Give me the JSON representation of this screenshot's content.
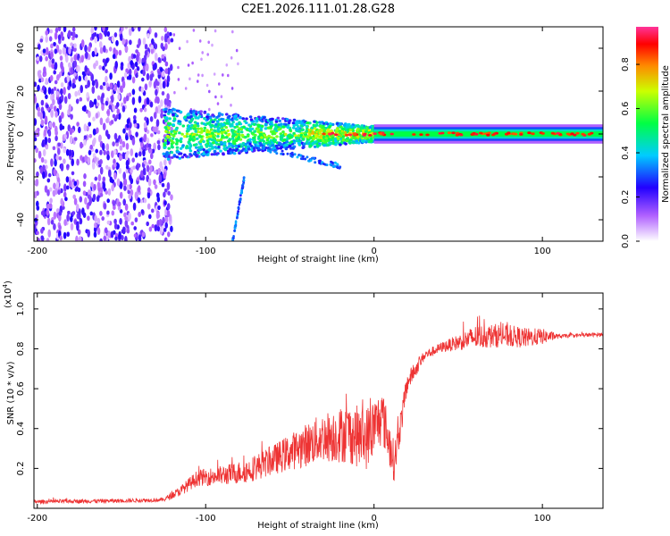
{
  "title": "C2E1.2026.111.01.28.G28",
  "chart_data": [
    {
      "type": "heatmap",
      "xlabel": "Height of straight line (km)",
      "ylabel": "Frequency (Hz)",
      "xlim": [
        -202,
        136
      ],
      "ylim": [
        -50,
        50
      ],
      "xticks": [
        "-200",
        "-100",
        "0",
        "100"
      ],
      "xtick_values": [
        -200,
        -100,
        0,
        100
      ],
      "yticks": [
        "-40",
        "-20",
        "0",
        "20",
        "40"
      ],
      "ytick_values": [
        -40,
        -20,
        0,
        20,
        40
      ],
      "colorbar": {
        "label": "Normalized spectral amplitude",
        "range": [
          0,
          0.97
        ],
        "ticks": [
          "0.0",
          "0.2",
          "0.4",
          "0.6",
          "0.8"
        ],
        "tick_values": [
          0,
          0.2,
          0.4,
          0.6,
          0.8
        ],
        "colormap": [
          "#ffffff",
          "#9933ff",
          "#0000ff",
          "#00ffff",
          "#00ff00",
          "#ffff00",
          "#ff0000",
          "#ff3399"
        ]
      },
      "features": {
        "noise_region_x": [
          -202,
          -122
        ],
        "dense_band_x": [
          -125,
          0
        ],
        "carrier_frequency_hz": 0,
        "secondary_branch": {
          "x": [
            -85,
            -75
          ],
          "freq": [
            -50,
            -20
          ]
        }
      }
    },
    {
      "type": "line",
      "xlabel": "Height of straight line (km)",
      "ylabel": "SNR (10 * v/v)",
      "scale_note": "(x10",
      "scale_exp": "4",
      "scale_close": ")",
      "xlim": [
        -202,
        136
      ],
      "ylim": [
        0,
        1.08
      ],
      "xticks": [
        "-200",
        "-100",
        "0",
        "100"
      ],
      "xtick_values": [
        -200,
        -100,
        0,
        100
      ],
      "yticks": [
        "0.2",
        "0.4",
        "0.6",
        "0.8",
        "1.0"
      ],
      "ytick_values": [
        0.2,
        0.4,
        0.6,
        0.8,
        1.0
      ],
      "series": [
        {
          "name": "SNR",
          "color": "#ee3333",
          "x": [
            -202,
            -150,
            -125,
            -115,
            -105,
            -90,
            -75,
            -60,
            -45,
            -30,
            -15,
            -5,
            5,
            12,
            20,
            30,
            40,
            50,
            60,
            75,
            90,
            100,
            110,
            136
          ],
          "base": [
            0.03,
            0.035,
            0.04,
            0.08,
            0.14,
            0.15,
            0.17,
            0.22,
            0.27,
            0.32,
            0.33,
            0.3,
            0.42,
            0.2,
            0.62,
            0.76,
            0.8,
            0.82,
            0.84,
            0.85,
            0.84,
            0.85,
            0.86,
            0.87
          ],
          "noise": [
            0.02,
            0.02,
            0.02,
            0.05,
            0.08,
            0.1,
            0.12,
            0.15,
            0.2,
            0.25,
            0.3,
            0.32,
            0.28,
            0.2,
            0.1,
            0.05,
            0.05,
            0.08,
            0.12,
            0.12,
            0.1,
            0.08,
            0.02,
            0.02
          ]
        }
      ]
    }
  ]
}
